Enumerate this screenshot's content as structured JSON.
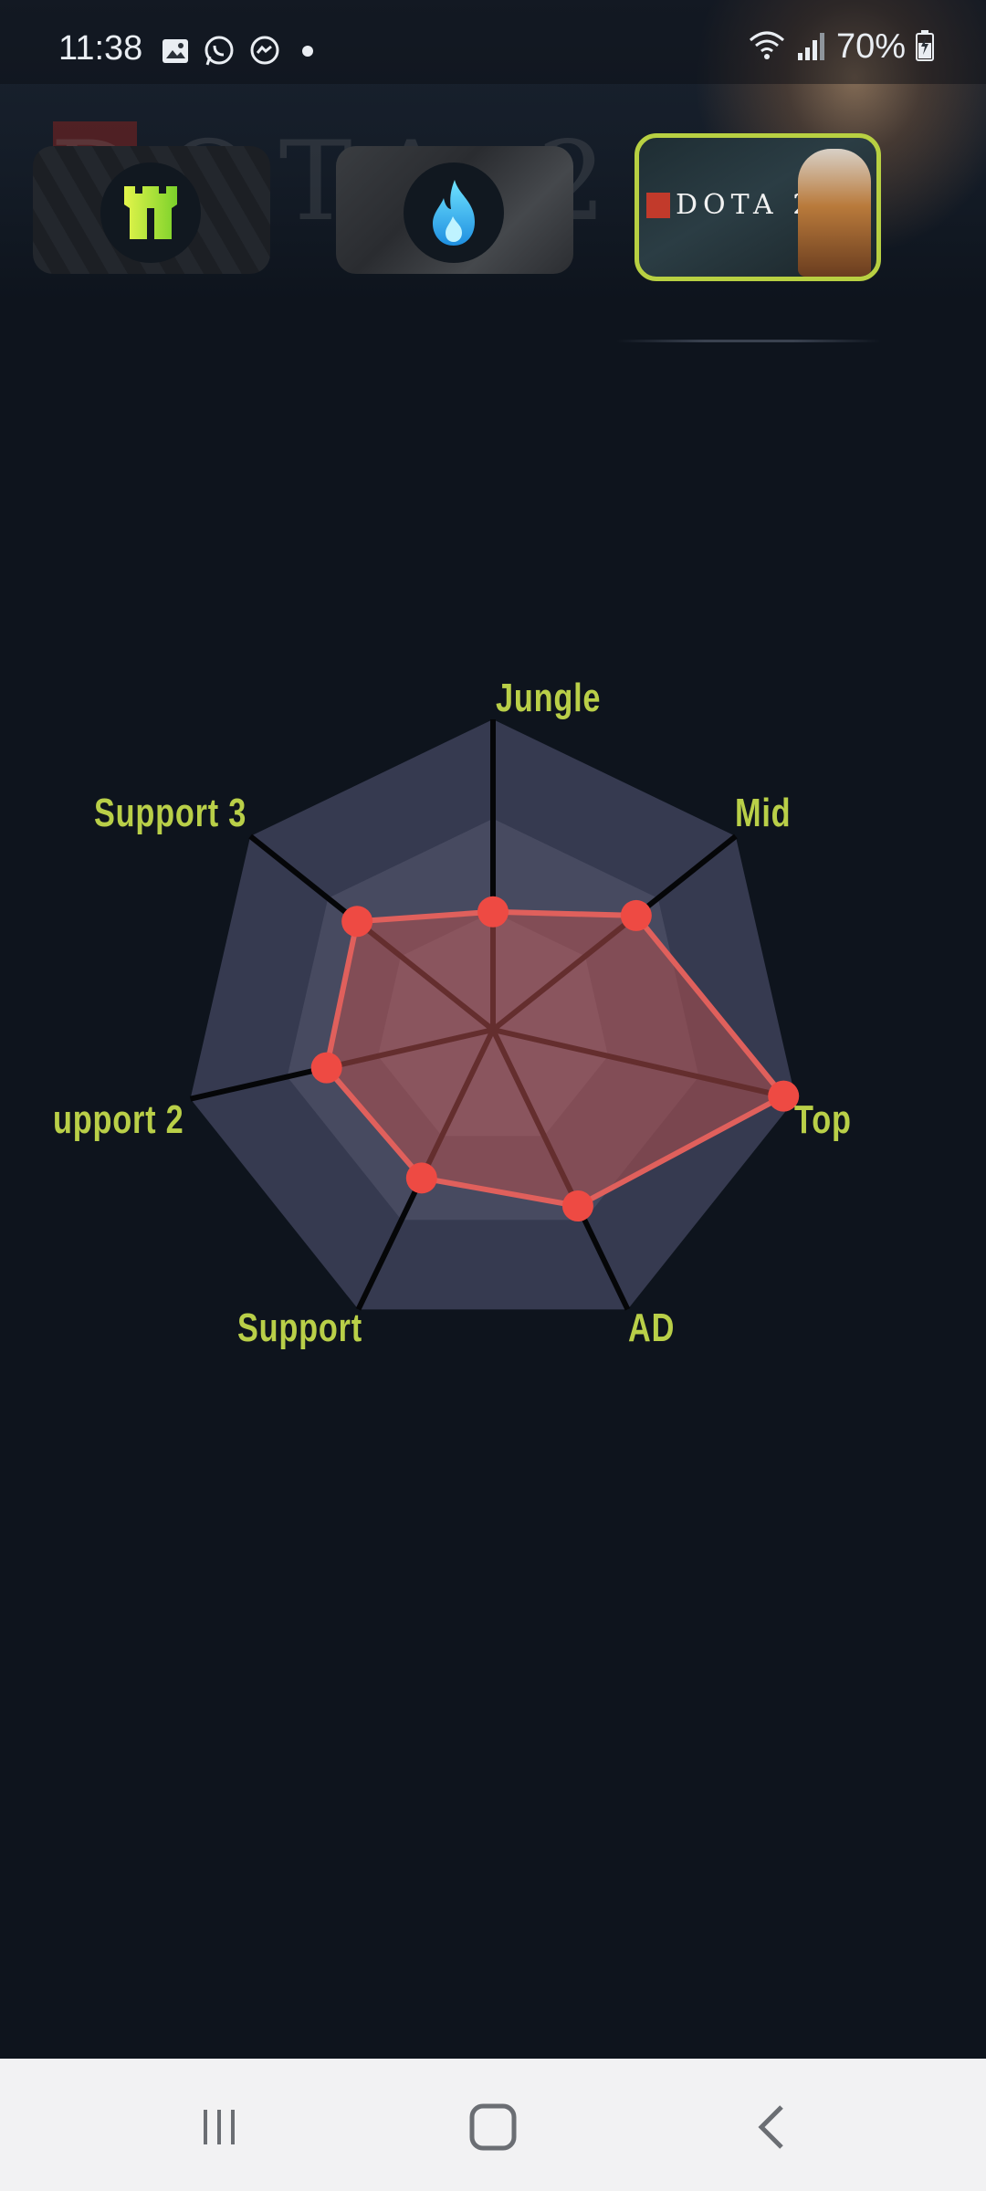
{
  "status_bar": {
    "time": "11:38",
    "battery": "70%",
    "notification_icons": [
      "gallery-icon",
      "whatsapp-icon",
      "messenger-icon",
      "dot-icon"
    ],
    "system_icons": [
      "wifi-icon",
      "signal-icon",
      "battery-charging-icon"
    ]
  },
  "games": [
    {
      "name": "league-of-legends",
      "icon": "tower-icon",
      "selected": false
    },
    {
      "name": "free-fire",
      "icon": "flame-icon",
      "selected": false
    },
    {
      "name": "dota-2",
      "label": "DOTA 2",
      "selected": true
    }
  ],
  "colors": {
    "accent": "#b8d042",
    "series_fill": "#b3514f",
    "series_stroke": "#e0605c",
    "point": "#ee4a43",
    "background": "#0e141d"
  },
  "chart_data": {
    "type": "radar",
    "axes": [
      "Jungle",
      "Mid",
      "Top",
      "AD",
      "Support",
      "upport 2",
      "Support 3"
    ],
    "rlim": [
      0,
      100
    ],
    "series": [
      {
        "values": [
          38,
          59,
          96,
          63,
          53,
          55,
          56
        ]
      }
    ]
  },
  "nav": {
    "buttons": [
      "recents-icon",
      "home-icon",
      "back-icon"
    ]
  }
}
